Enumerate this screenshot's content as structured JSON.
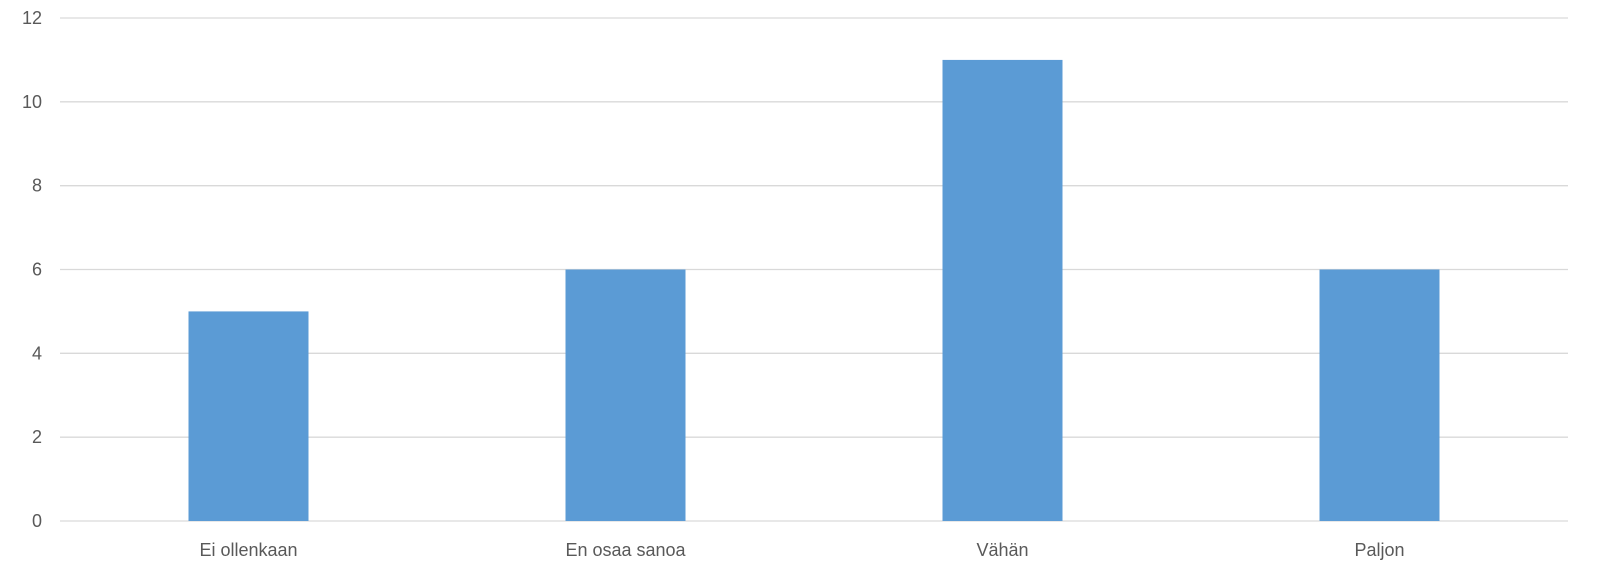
{
  "chart_data": {
    "type": "bar",
    "title": "",
    "xlabel": "",
    "ylabel": "",
    "categories": [
      "Ei ollenkaan",
      "En osaa sanoa",
      "Vähän",
      "Paljon"
    ],
    "values": [
      5,
      6,
      11,
      6
    ],
    "ylim": [
      0,
      12
    ],
    "yticks": [
      0,
      2,
      4,
      6,
      8,
      10,
      12
    ],
    "grid": true,
    "legend": "none",
    "bar_color": "#5b9bd5",
    "grid_color": "#d9d9d9",
    "text_color": "#595959"
  }
}
